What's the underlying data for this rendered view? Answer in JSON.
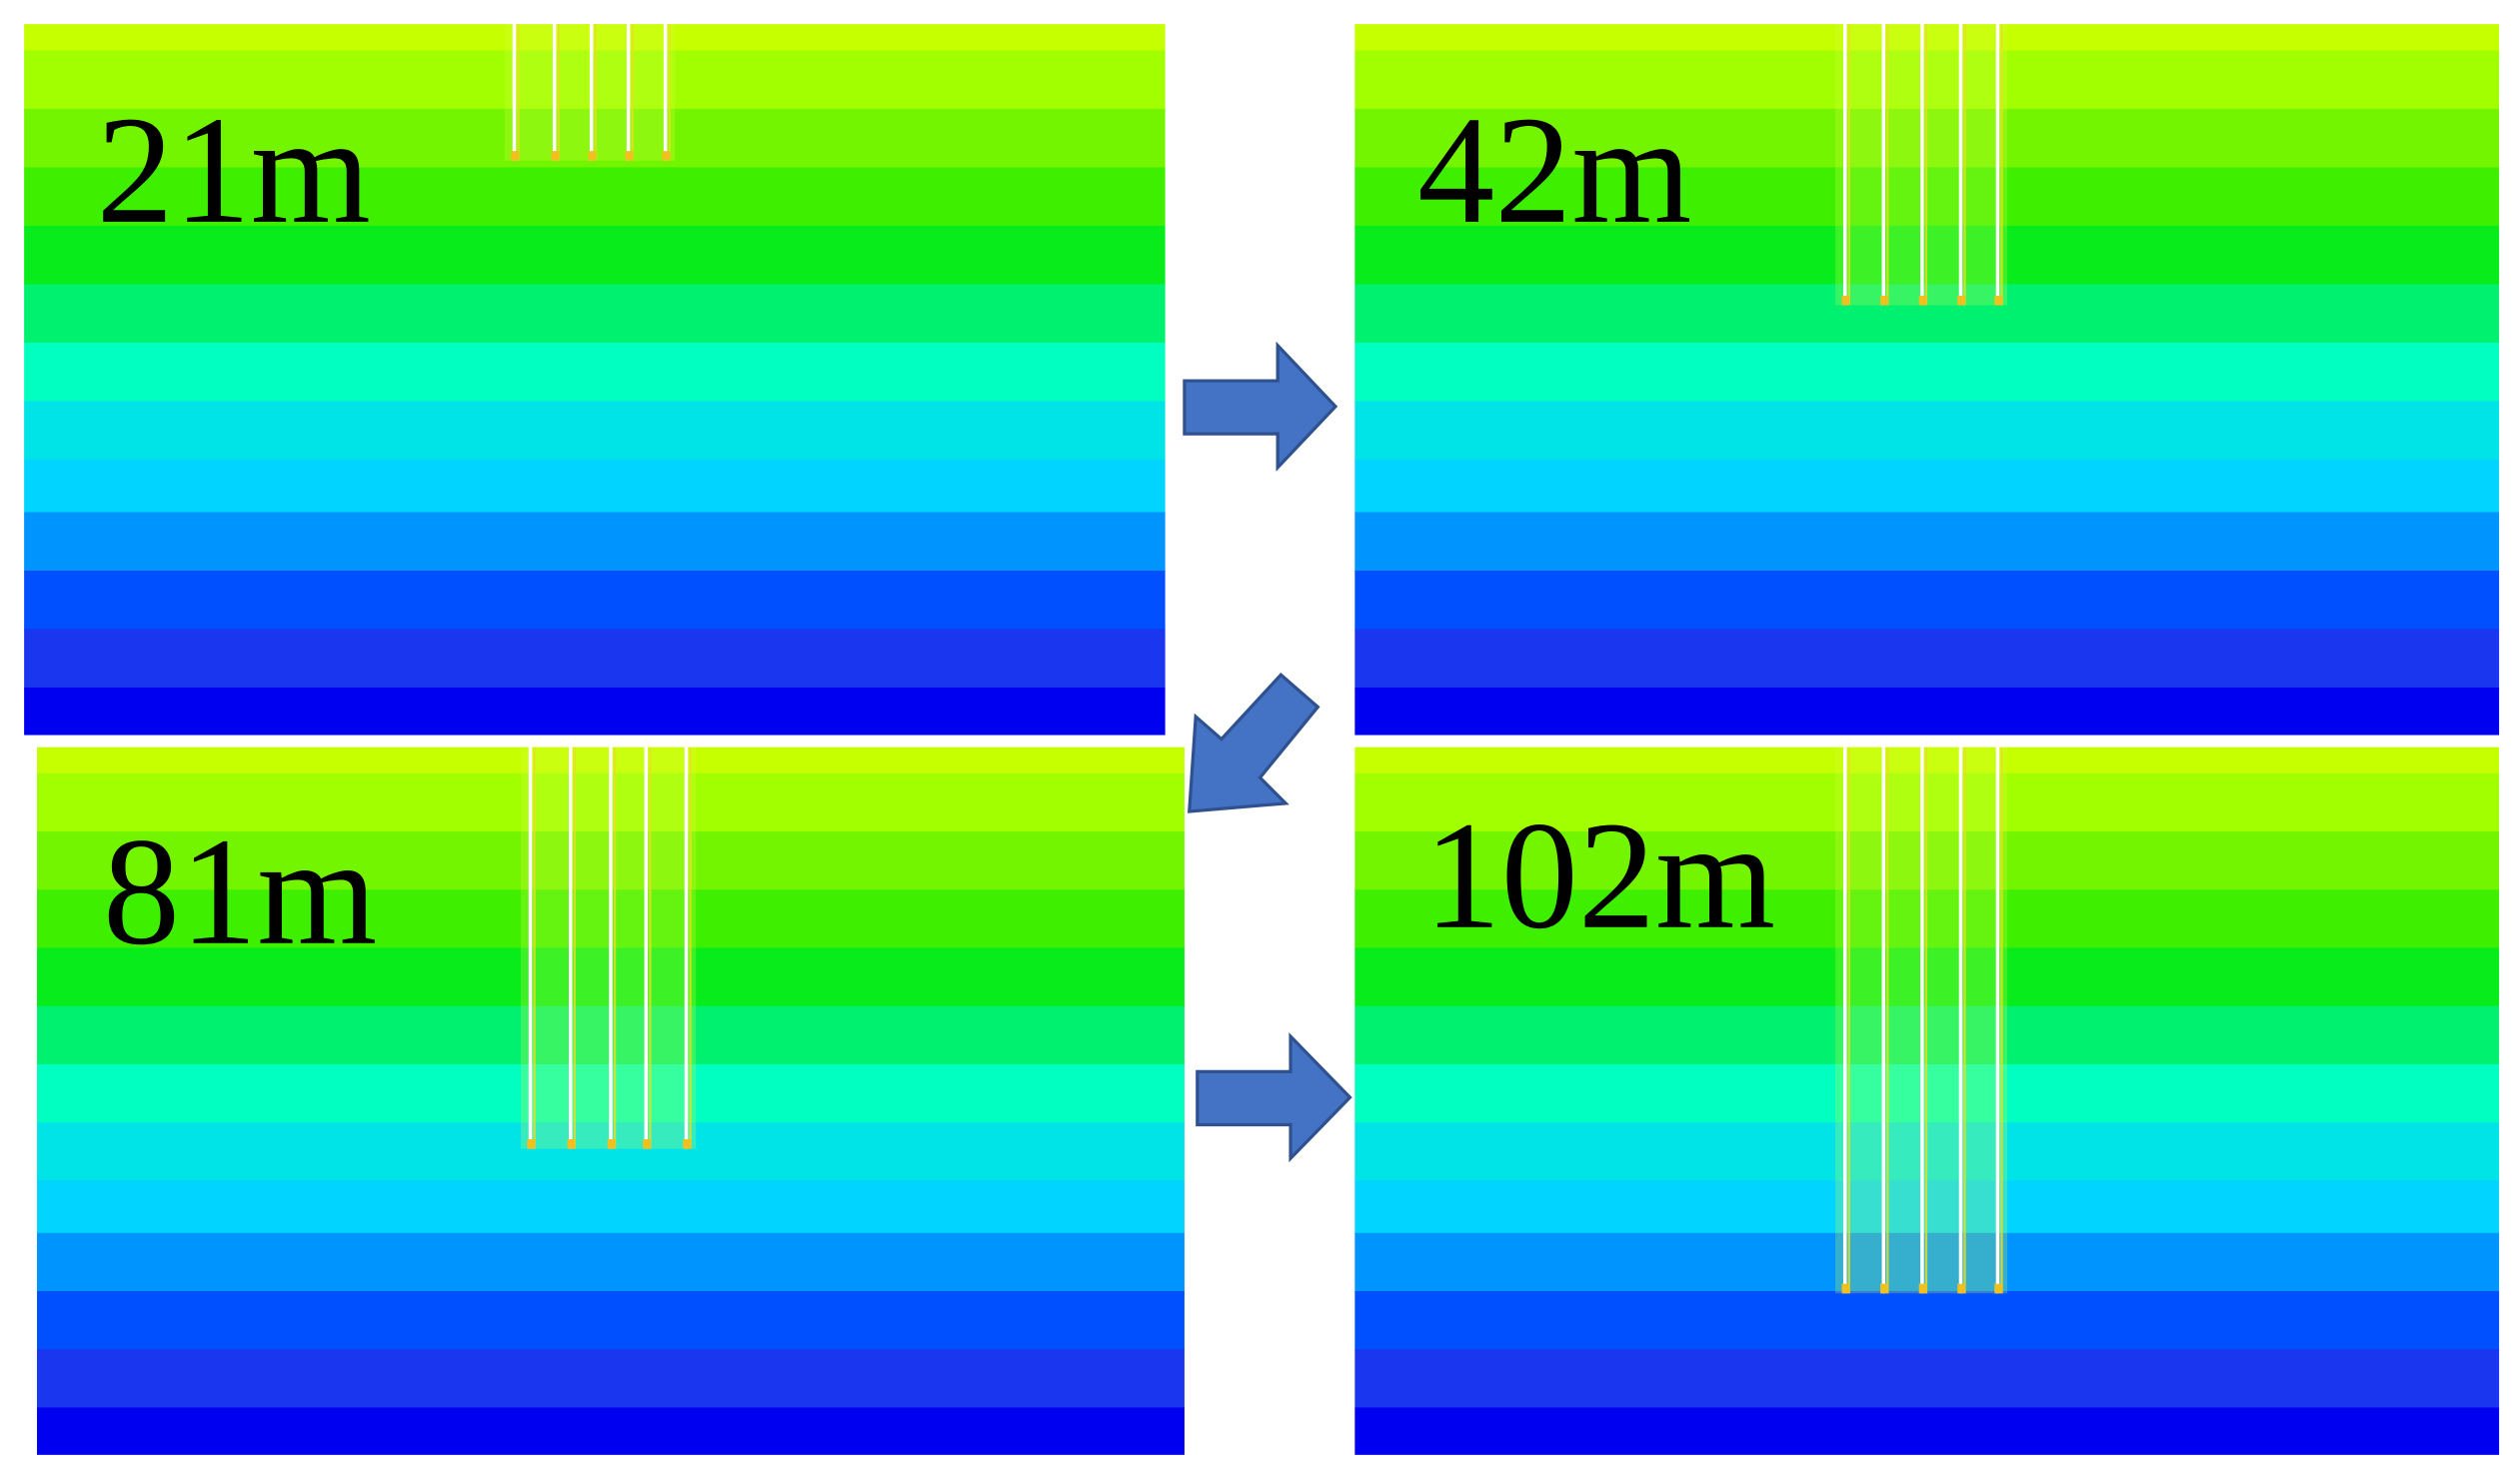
{
  "panels": [
    {
      "label": "21m"
    },
    {
      "label": "42m"
    },
    {
      "label": "81m"
    },
    {
      "label": "102m"
    }
  ]
}
